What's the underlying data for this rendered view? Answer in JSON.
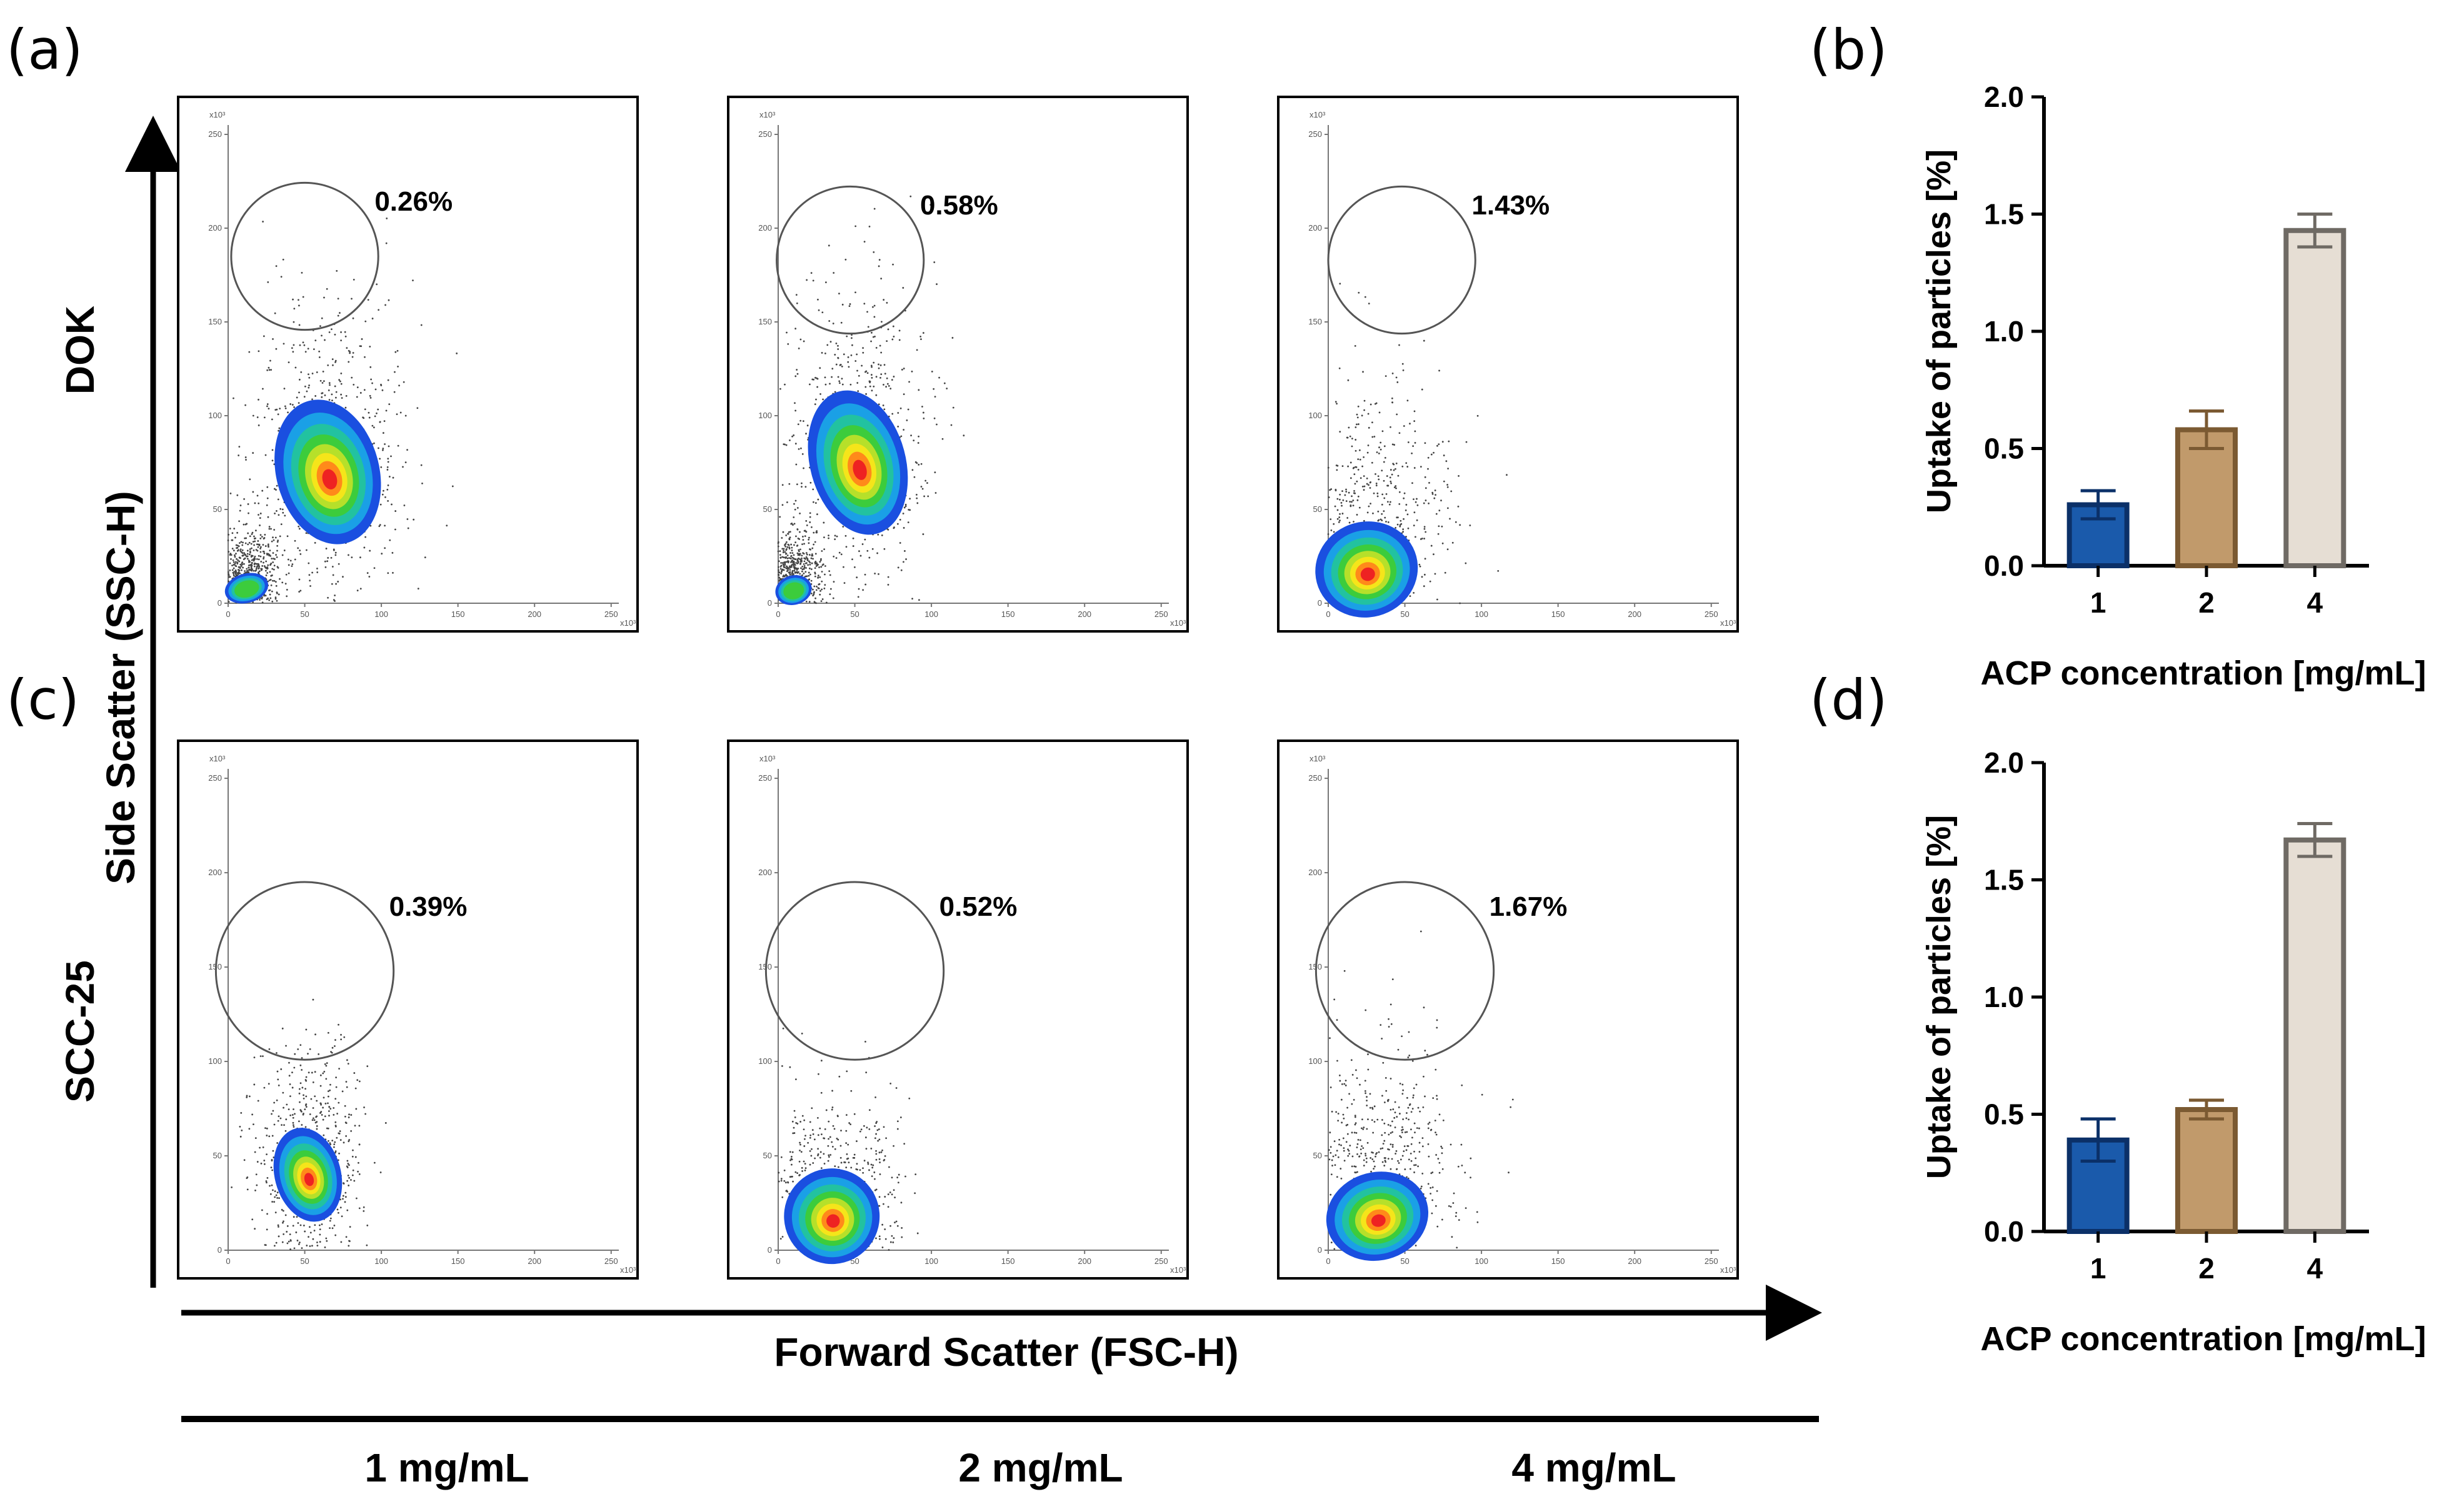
{
  "figure": {
    "panel_labels": [
      "(a)",
      "(b)",
      "(c)",
      "(d)"
    ],
    "y_axis_label": "Side Scatter (SSC-H)",
    "x_axis_label": "Forward Scatter (FSC-H)",
    "row_labels": [
      "DOK",
      "SCC-25"
    ],
    "concentration_labels": [
      "1 mg/mL",
      "2 mg/mL",
      "4 mg/mL"
    ],
    "flow_tick_labels": [
      "0",
      "50",
      "100",
      "150",
      "200",
      "250"
    ],
    "flow_scale_label": "x10³"
  },
  "chart_data": [
    {
      "id": "a",
      "type": "scatter",
      "title": "",
      "row": "DOK",
      "xlabel": "Forward Scatter (FSC-H)",
      "ylabel": "Side Scatter (SSC-H)",
      "xlim": [
        0,
        255
      ],
      "ylim": [
        0,
        255
      ],
      "panels": [
        {
          "concentration": "1 mg/mL",
          "gate_percent": "0.26%",
          "gate": {
            "cx": 50,
            "cy": 185,
            "r": 48
          },
          "populations": [
            {
              "x": 65,
              "y": 70,
              "sx": 14,
              "sy": 20
            },
            {
              "x": 12,
              "y": 8,
              "sx": 6,
              "sy": 4
            }
          ]
        },
        {
          "concentration": "2 mg/mL",
          "gate_percent": "0.58%",
          "gate": {
            "cx": 47,
            "cy": 183,
            "r": 48
          },
          "populations": [
            {
              "x": 52,
              "y": 75,
              "sx": 13,
              "sy": 20
            },
            {
              "x": 10,
              "y": 7,
              "sx": 5,
              "sy": 4
            }
          ]
        },
        {
          "concentration": "4 mg/mL",
          "gate_percent": "1.43%",
          "gate": {
            "cx": 48,
            "cy": 183,
            "r": 48
          },
          "populations": [
            {
              "x": 25,
              "y": 18,
              "sx": 14,
              "sy": 13
            }
          ]
        }
      ]
    },
    {
      "id": "b",
      "type": "bar",
      "title": "",
      "categories": [
        "1",
        "2",
        "4"
      ],
      "values": [
        0.26,
        0.58,
        1.43
      ],
      "errors": [
        0.06,
        0.08,
        0.07
      ],
      "colors": [
        "#1a5aab",
        "#c19a6b",
        "#e6ded4"
      ],
      "edge_colors": [
        "#0b3068",
        "#7b5a32",
        "#6f6a64"
      ],
      "xlabel": "ACP concentration [mg/mL]",
      "ylabel": "Uptake of particles [%]",
      "ylim": [
        0,
        2.0
      ],
      "yticks": [
        "0.0",
        "0.5",
        "1.0",
        "1.5",
        "2.0"
      ]
    },
    {
      "id": "c",
      "type": "scatter",
      "title": "",
      "row": "SCC-25",
      "xlabel": "Forward Scatter (FSC-H)",
      "ylabel": "Side Scatter (SSC-H)",
      "xlim": [
        0,
        255
      ],
      "ylim": [
        0,
        255
      ],
      "panels": [
        {
          "concentration": "1 mg/mL",
          "gate_percent": "0.39%",
          "gate": {
            "cx": 50,
            "cy": 148,
            "r": 58
          },
          "populations": [
            {
              "x": 52,
              "y": 40,
              "sx": 9,
              "sy": 13
            }
          ]
        },
        {
          "concentration": "2 mg/mL",
          "gate_percent": "0.52%",
          "gate": {
            "cx": 50,
            "cy": 148,
            "r": 58
          },
          "populations": [
            {
              "x": 35,
              "y": 18,
              "sx": 13,
              "sy": 13
            }
          ]
        },
        {
          "concentration": "4 mg/mL",
          "gate_percent": "1.67%",
          "gate": {
            "cx": 50,
            "cy": 148,
            "r": 58
          },
          "populations": [
            {
              "x": 32,
              "y": 18,
              "sx": 14,
              "sy": 12
            }
          ]
        }
      ]
    },
    {
      "id": "d",
      "type": "bar",
      "title": "",
      "categories": [
        "1",
        "2",
        "4"
      ],
      "values": [
        0.39,
        0.52,
        1.67
      ],
      "errors": [
        0.09,
        0.04,
        0.07
      ],
      "colors": [
        "#1a5aab",
        "#c19a6b",
        "#e6ded4"
      ],
      "edge_colors": [
        "#0b3068",
        "#7b5a32",
        "#6f6a64"
      ],
      "xlabel": "ACP concentration [mg/mL]",
      "ylabel": "Uptake of particles [%]",
      "ylim": [
        0,
        2.0
      ],
      "yticks": [
        "0.0",
        "0.5",
        "1.0",
        "1.5",
        "2.0"
      ]
    }
  ]
}
